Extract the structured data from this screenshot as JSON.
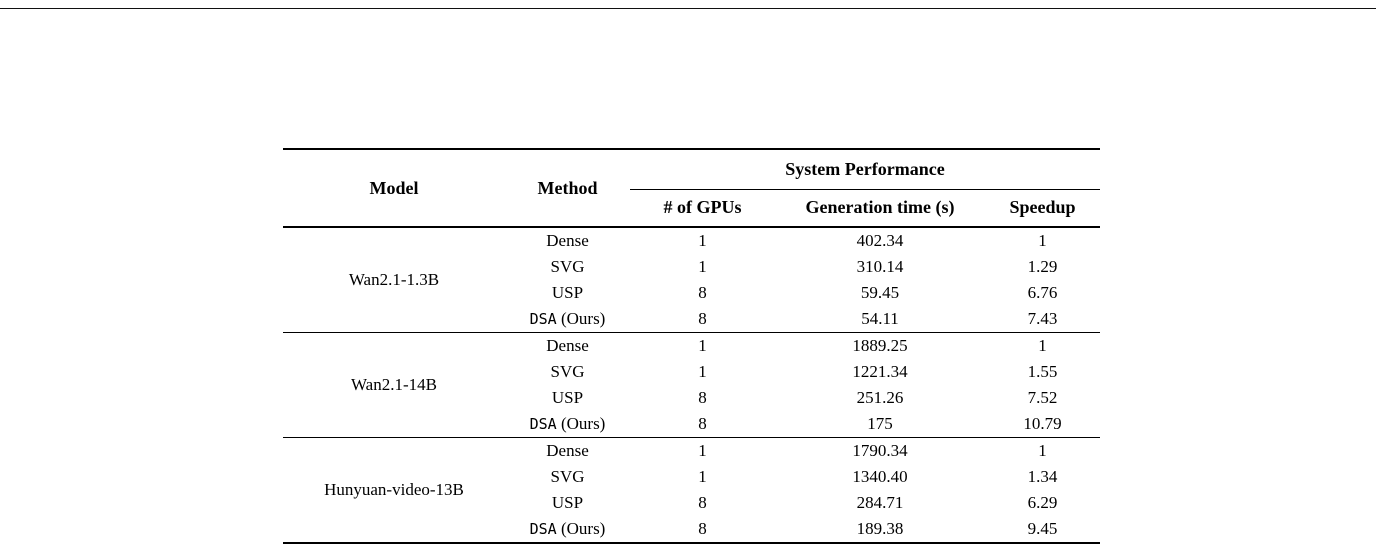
{
  "table": {
    "header": {
      "model": "Model",
      "method": "Method",
      "group_header": "System Performance",
      "subcols": [
        "# of GPUs",
        "Generation time (s)",
        "Speedup"
      ]
    },
    "groups": [
      {
        "model": "Wan2.1-1.3B",
        "rows": [
          {
            "method_parts": [
              {
                "text": "Dense",
                "mono": false
              }
            ],
            "gpus": "1",
            "time": "402.34",
            "speedup": "1"
          },
          {
            "method_parts": [
              {
                "text": "SVG",
                "mono": false
              }
            ],
            "gpus": "1",
            "time": "310.14",
            "speedup": "1.29"
          },
          {
            "method_parts": [
              {
                "text": "USP",
                "mono": false
              }
            ],
            "gpus": "8",
            "time": "59.45",
            "speedup": "6.76"
          },
          {
            "method_parts": [
              {
                "text": "DSA",
                "mono": true
              },
              {
                "text": " (Ours)",
                "mono": false
              }
            ],
            "gpus": "8",
            "time": "54.11",
            "speedup": "7.43"
          }
        ]
      },
      {
        "model": "Wan2.1-14B",
        "rows": [
          {
            "method_parts": [
              {
                "text": "Dense",
                "mono": false
              }
            ],
            "gpus": "1",
            "time": "1889.25",
            "speedup": "1"
          },
          {
            "method_parts": [
              {
                "text": "SVG",
                "mono": false
              }
            ],
            "gpus": "1",
            "time": "1221.34",
            "speedup": "1.55"
          },
          {
            "method_parts": [
              {
                "text": "USP",
                "mono": false
              }
            ],
            "gpus": "8",
            "time": "251.26",
            "speedup": "7.52"
          },
          {
            "method_parts": [
              {
                "text": "DSA",
                "mono": true
              },
              {
                "text": " (Ours)",
                "mono": false
              }
            ],
            "gpus": "8",
            "time": "175",
            "speedup": "10.79"
          }
        ]
      },
      {
        "model": "Hunyuan-video-13B",
        "rows": [
          {
            "method_parts": [
              {
                "text": "Dense",
                "mono": false
              }
            ],
            "gpus": "1",
            "time": "1790.34",
            "speedup": "1"
          },
          {
            "method_parts": [
              {
                "text": "SVG",
                "mono": false
              }
            ],
            "gpus": "1",
            "time": "1340.40",
            "speedup": "1.34"
          },
          {
            "method_parts": [
              {
                "text": "USP",
                "mono": false
              }
            ],
            "gpus": "8",
            "time": "284.71",
            "speedup": "6.29"
          },
          {
            "method_parts": [
              {
                "text": "DSA",
                "mono": true
              },
              {
                "text": " (Ours)",
                "mono": false
              }
            ],
            "gpus": "8",
            "time": "189.38",
            "speedup": "9.45"
          }
        ]
      }
    ]
  }
}
